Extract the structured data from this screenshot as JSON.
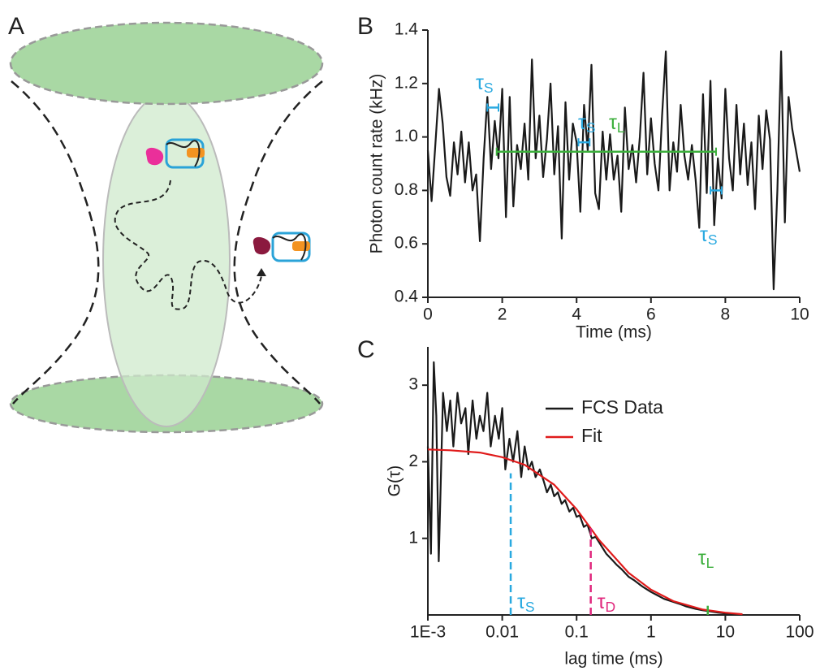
{
  "panel_labels": [
    "A",
    "B",
    "C"
  ],
  "chart_data": [
    {
      "type": "line",
      "y_label": "Photon count rate (kHz)",
      "x_label": "Time (ms)",
      "xlim": [
        0,
        10
      ],
      "xticks": [
        0,
        2,
        4,
        6,
        8,
        10
      ],
      "ylim": [
        0.4,
        1.4
      ],
      "yticks": [
        0.4,
        0.6,
        0.8,
        {
          "value": 1.0,
          "label": "1.0"
        },
        1.2,
        1.4
      ],
      "x": [
        0,
        0.1,
        0.2,
        0.3,
        0.4,
        0.5,
        0.6,
        0.7,
        0.8,
        0.9,
        1,
        1.1,
        1.2,
        1.3,
        1.4,
        1.5,
        1.6,
        1.7,
        1.8,
        1.9,
        2,
        2.1,
        2.2,
        2.3,
        2.4,
        2.5,
        2.6,
        2.7,
        2.8,
        2.9,
        3,
        3.1,
        3.2,
        3.3,
        3.4,
        3.5,
        3.6,
        3.7,
        3.8,
        3.9,
        4,
        4.1,
        4.2,
        4.3,
        4.4,
        4.5,
        4.6,
        4.7,
        4.8,
        4.9,
        5,
        5.1,
        5.2,
        5.3,
        5.4,
        5.5,
        5.6,
        5.7,
        5.8,
        5.9,
        6,
        6.1,
        6.2,
        6.3,
        6.4,
        6.5,
        6.6,
        6.7,
        6.8,
        6.9,
        7,
        7.1,
        7.2,
        7.3,
        7.4,
        7.5,
        7.6,
        7.7,
        7.8,
        7.9,
        8,
        8.1,
        8.2,
        8.3,
        8.4,
        8.5,
        8.6,
        8.7,
        8.8,
        8.9,
        9,
        9.1,
        9.2,
        9.3,
        9.4,
        9.5,
        9.6,
        9.7,
        9.8,
        9.9,
        10
      ],
      "series": [
        {
          "color": "#1a1a1a",
          "values": [
            0.95,
            0.76,
            0.97,
            1.18,
            1.05,
            0.85,
            0.78,
            0.98,
            0.86,
            1.02,
            0.83,
            0.98,
            0.8,
            0.86,
            0.61,
            0.92,
            1.15,
            0.88,
            1.06,
            0.92,
            1.18,
            0.7,
            1.15,
            0.74,
            0.97,
            0.88,
            1.05,
            0.84,
            1.29,
            0.92,
            1.08,
            0.85,
            0.99,
            1.2,
            0.86,
            1.04,
            0.62,
            1.13,
            0.84,
            1.05,
            0.98,
            0.72,
            1.12,
            0.95,
            1.27,
            0.79,
            0.73,
            1.02,
            0.84,
            1.01,
            0.84,
            0.93,
            0.72,
            1.11,
            0.88,
            0.97,
            0.83,
            1.0,
            1.24,
            0.86,
            1.07,
            0.9,
            0.8,
            1.08,
            1.32,
            0.8,
            0.98,
            0.87,
            1.12,
            0.93,
            0.84,
            0.97,
            0.84,
            0.66,
            1.16,
            0.79,
            1.21,
            0.67,
            0.92,
            0.77,
            1.18,
            0.92,
            0.8,
            1.12,
            0.86,
            1.05,
            0.82,
            0.98,
            0.73,
            1.08,
            0.88,
            1.1,
            0.99,
            0.43,
            0.8,
            1.32,
            0.68,
            1.15,
            1.03,
            0.95,
            0.87
          ]
        }
      ],
      "intervals": [
        {
          "label": "τ",
          "sub": "S",
          "color": "#29a9e0",
          "x": [
            1.6,
            1.9
          ],
          "y": 1.11
        },
        {
          "label": "τ",
          "sub": "S",
          "color": "#29a9e0",
          "x": [
            4.05,
            4.35
          ],
          "y": 0.98
        },
        {
          "label": "τ",
          "sub": "L",
          "color": "#3daf3d",
          "x": [
            1.85,
            7.75
          ],
          "y": 0.945
        },
        {
          "label": "τ",
          "sub": "S",
          "color": "#29a9e0",
          "x": [
            7.6,
            7.9
          ],
          "y": 0.8
        }
      ]
    },
    {
      "type": "line",
      "log_x": true,
      "y_label": "G(τ)",
      "x_label": "lag time (ms)",
      "xlim": [
        0.001,
        100
      ],
      "xticks": [
        {
          "value": 0.001,
          "label": "1E-3"
        },
        0.01,
        0.1,
        1,
        10,
        100
      ],
      "ylim": [
        0,
        3.5
      ],
      "yticks": [
        1,
        2,
        3
      ],
      "legend": "upper right",
      "series": [
        {
          "name": "FCS Data",
          "color": "#1a1a1a",
          "x": [
            0.001,
            0.0011,
            0.0012,
            0.0013,
            0.0014,
            0.0016,
            0.0018,
            0.002,
            0.0022,
            0.0025,
            0.0028,
            0.0032,
            0.0035,
            0.004,
            0.0045,
            0.005,
            0.0056,
            0.0063,
            0.007,
            0.008,
            0.009,
            0.01,
            0.011,
            0.0125,
            0.014,
            0.016,
            0.018,
            0.02,
            0.0225,
            0.025,
            0.028,
            0.032,
            0.036,
            0.04,
            0.045,
            0.05,
            0.056,
            0.063,
            0.07,
            0.08,
            0.09,
            0.1,
            0.11,
            0.125,
            0.14,
            0.16,
            0.18,
            0.2,
            0.25,
            0.3,
            0.35,
            0.4,
            0.5,
            0.6,
            0.7,
            0.8,
            1,
            1.2,
            1.5,
            2,
            2.5,
            3,
            4,
            5,
            6,
            8,
            10,
            12
          ],
          "values": [
            2.2,
            0.8,
            3.3,
            2.6,
            0.7,
            2.9,
            2.4,
            2.8,
            2.2,
            2.9,
            2.5,
            2.7,
            2.1,
            2.8,
            2.3,
            2.6,
            2.4,
            2.9,
            2.2,
            2.6,
            2.3,
            2.7,
            1.9,
            2.3,
            2.0,
            2.4,
            1.8,
            2.2,
            1.9,
            2.0,
            1.8,
            1.9,
            1.75,
            1.6,
            1.7,
            1.55,
            1.6,
            1.45,
            1.5,
            1.35,
            1.4,
            1.28,
            1.3,
            1.15,
            1.18,
            1.0,
            1.02,
            0.95,
            0.8,
            0.72,
            0.65,
            0.6,
            0.5,
            0.45,
            0.4,
            0.36,
            0.3,
            0.26,
            0.21,
            0.17,
            0.14,
            0.11,
            0.08,
            0.06,
            0.05,
            0.03,
            0.02,
            0.02
          ]
        },
        {
          "name": "Fit",
          "color": "#e01b1b",
          "x": [
            0.001,
            0.002,
            0.005,
            0.01,
            0.02,
            0.05,
            0.1,
            0.15,
            0.2,
            0.5,
            1,
            2,
            5,
            10,
            17
          ],
          "values": [
            2.16,
            2.15,
            2.12,
            2.06,
            1.96,
            1.7,
            1.38,
            1.15,
            0.98,
            0.55,
            0.33,
            0.18,
            0.07,
            0.03,
            0.01
          ]
        }
      ],
      "markers": [
        {
          "label": "τ",
          "sub": "S",
          "color": "#29a9e0",
          "x": 0.013,
          "y": 1.85
        },
        {
          "label": "τ",
          "sub": "D",
          "color": "#e0287d",
          "x": 0.155,
          "y": 1.15
        },
        {
          "label": "τ",
          "sub": "L",
          "color": "#3daf3d",
          "x": 5.8,
          "y": 0.12
        }
      ]
    }
  ]
}
